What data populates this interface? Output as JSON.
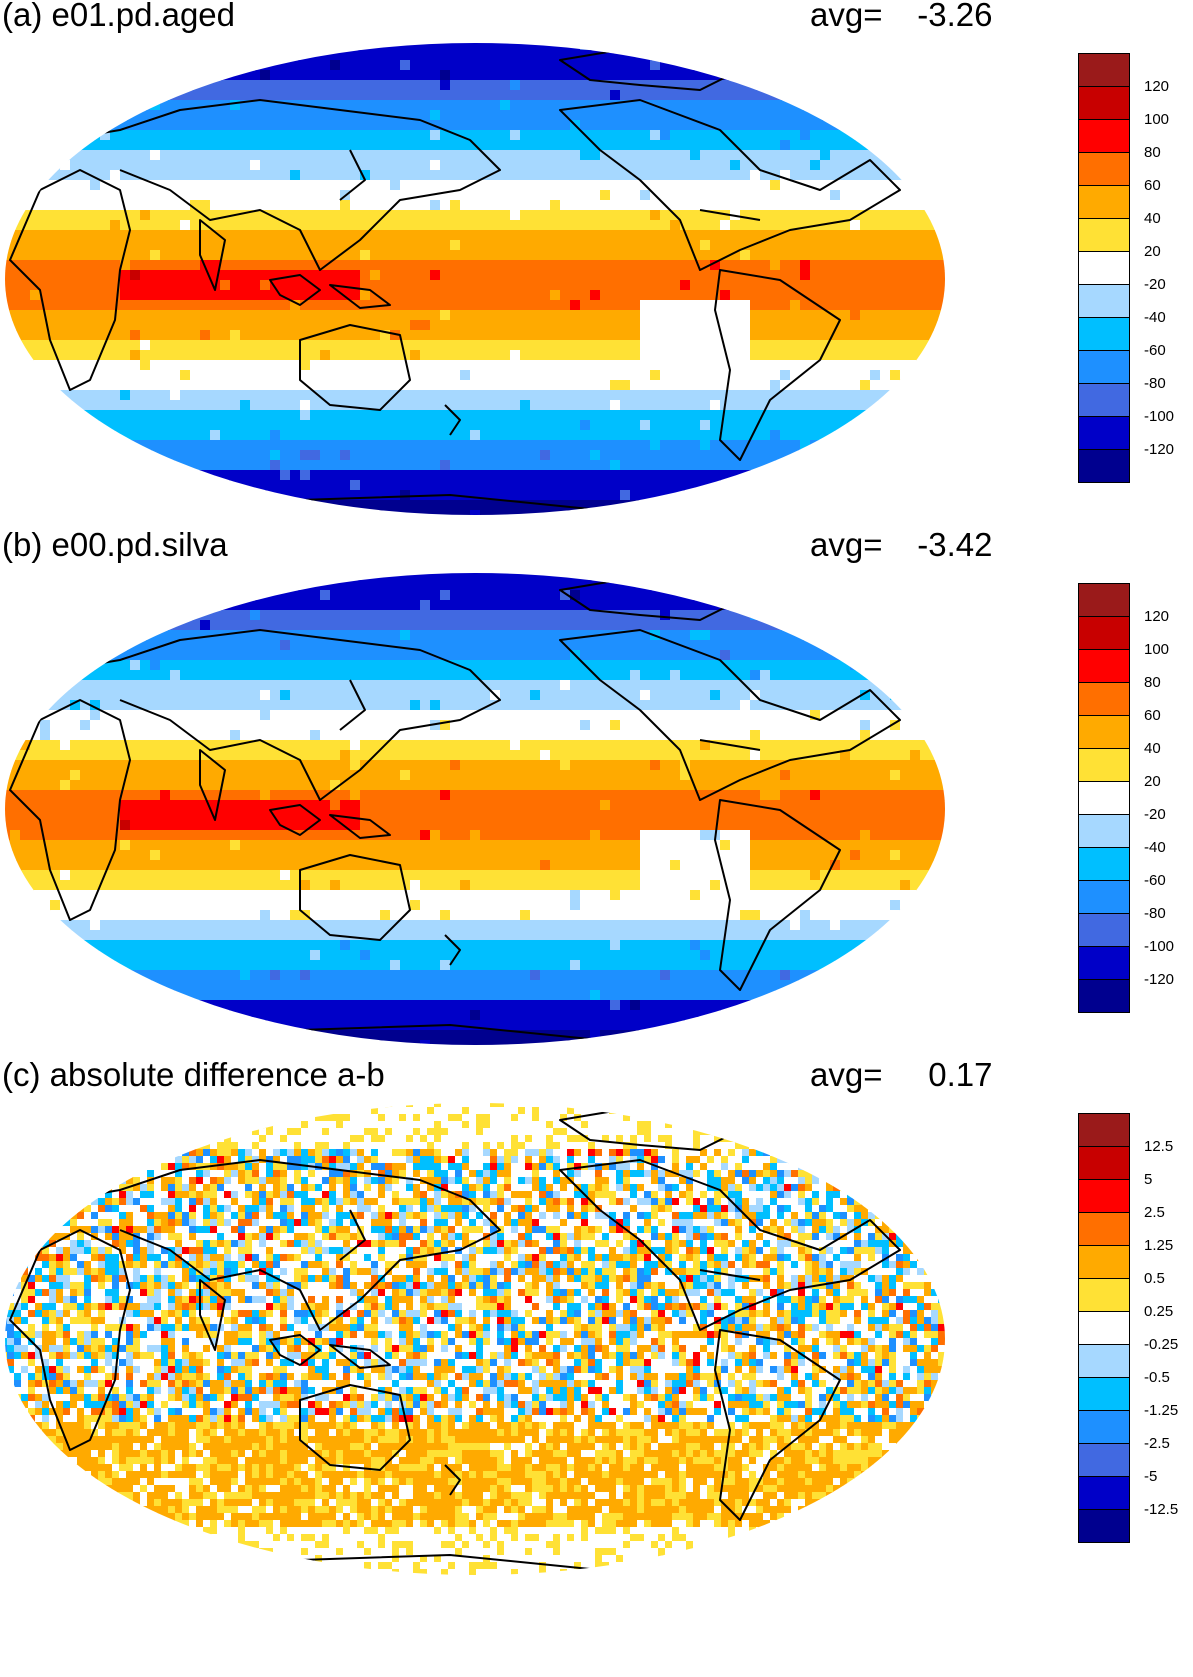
{
  "colors": {
    "levels_11": [
      "#00008f",
      "#0000c8",
      "#4169e1",
      "#1e90ff",
      "#00bfff",
      "#a6d8ff",
      "#ffffff",
      "#ffe135",
      "#ffaa00",
      "#ff6f00",
      "#ff0000",
      "#c80000",
      "#9a1a1a"
    ],
    "land_outline": "#000000"
  },
  "panels": [
    {
      "id": "a",
      "title": "(a) e01.pd.aged",
      "avg_label": "avg=",
      "avg_value": "-3.26",
      "colorbar_labels": [
        "120",
        "100",
        "80",
        "60",
        "40",
        "20",
        "-20",
        "-40",
        "-60",
        "-80",
        "-100",
        "-120"
      ],
      "pattern": "field"
    },
    {
      "id": "b",
      "title": "(b) e00.pd.silva",
      "avg_label": "avg=",
      "avg_value": "-3.42",
      "colorbar_labels": [
        "120",
        "100",
        "80",
        "60",
        "40",
        "20",
        "-20",
        "-40",
        "-60",
        "-80",
        "-100",
        "-120"
      ],
      "pattern": "field"
    },
    {
      "id": "c",
      "title": "(c) absolute difference a-b",
      "avg_label": "avg=",
      "avg_value": "0.17",
      "colorbar_labels": [
        "12.5",
        "5",
        "2.5",
        "1.25",
        "0.5",
        "0.25",
        "-0.25",
        "-0.5",
        "-1.25",
        "-2.5",
        "-5",
        "-12.5"
      ],
      "pattern": "noise"
    }
  ]
}
